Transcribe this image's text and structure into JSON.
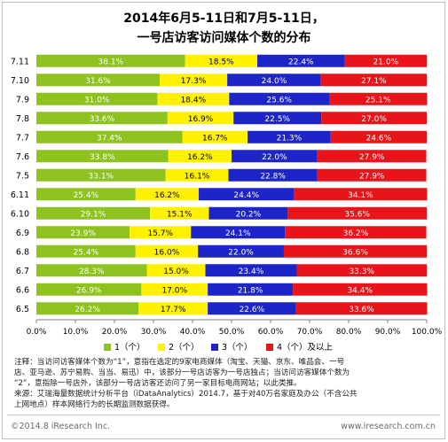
{
  "title_line1": "2014年6月5-11日和7月5-11日，",
  "title_line2": "一号店访客访问媒体个数的分布",
  "chart_data": {
    "type": "bar",
    "orientation": "horizontal",
    "stacked": true,
    "percent": true,
    "categories": [
      "7.11",
      "7.10",
      "7.9",
      "7.8",
      "7.7",
      "7.6",
      "7.5",
      "6.11",
      "6.10",
      "6.9",
      "6.8",
      "6.7",
      "6.6",
      "6.5"
    ],
    "series": [
      {
        "name": "1（个）",
        "color": "#8dc21f",
        "values": [
          38.1,
          31.6,
          31.0,
          33.6,
          37.4,
          33.8,
          33.1,
          25.4,
          29.1,
          23.9,
          25.4,
          28.3,
          26.9,
          26.2
        ]
      },
      {
        "name": "2（个）",
        "color": "#fff100",
        "values": [
          18.5,
          17.3,
          18.4,
          16.9,
          16.7,
          16.2,
          16.1,
          16.2,
          15.1,
          15.7,
          16.0,
          15.0,
          17.0,
          17.7
        ]
      },
      {
        "name": "3（个）",
        "color": "#1d24c8",
        "values": [
          22.4,
          24.0,
          25.6,
          22.5,
          21.3,
          22.0,
          22.8,
          24.4,
          20.2,
          24.1,
          22.0,
          23.4,
          21.8,
          22.6
        ]
      },
      {
        "name": "4（个）及以上",
        "color": "#e8141a",
        "values": [
          21.0,
          27.1,
          25.1,
          27.0,
          24.6,
          27.9,
          27.9,
          34.1,
          35.6,
          36.2,
          36.6,
          33.3,
          34.4,
          33.6
        ]
      }
    ],
    "xlim": [
      0,
      100
    ],
    "xticks": [
      "0.0%",
      "10.0%",
      "20.0%",
      "30.0%",
      "40.0%",
      "50.0%",
      "60.0%",
      "70.0%",
      "80.0%",
      "90.0%",
      "100.0%"
    ],
    "legend_position": "bottom",
    "grid": false
  },
  "note_line1": "注释：当访问访客媒体个数为“1”，意指在选定的9家电商媒体（淘宝、天猫、京东、唯品会、一号",
  "note_line2": "店、亚马逊、苏宁易购、当当、易迅）中，该部分一号店访客为一号店独占；当访问访客媒体个数为",
  "note_line3": "“2”，意指除一号店外，该部分一号店访客还访问了另一家目标电商网站；以此类推。",
  "note_line4": "来源：艾瑞海量数据统计分析平台（iDataAnalytics）2014.7，基于对40万名家庭及办公（不含公共",
  "note_line5": "上网地点）样本网络行为的长期监测数据获得。",
  "copyright": "©2014.8 iResearch Inc.",
  "website": "www.iresearch.com.cn"
}
